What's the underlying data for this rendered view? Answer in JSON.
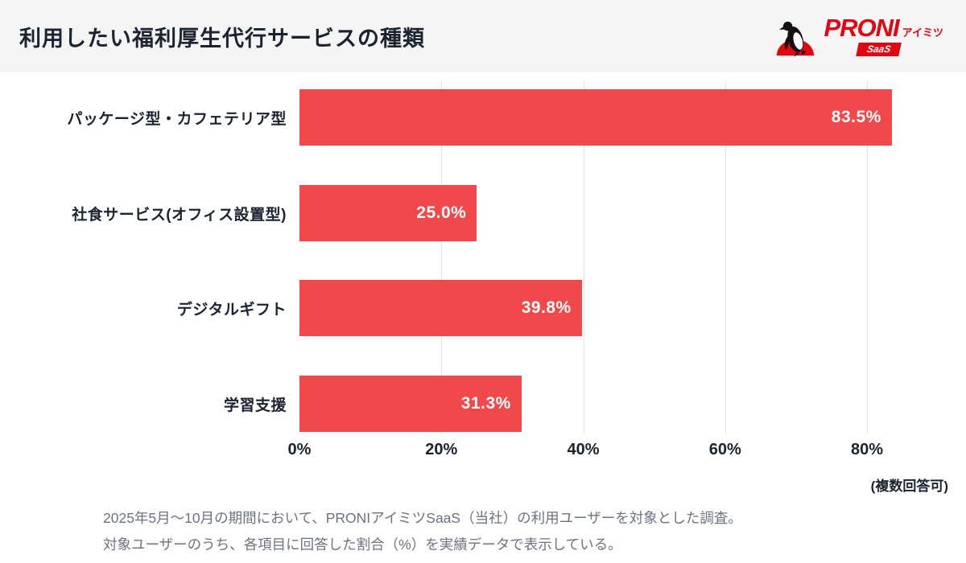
{
  "header": {
    "title": "利用したい福利厚生代行サービスの種類",
    "logo": {
      "brand": "PRONI",
      "sub": "アイミツ",
      "badge": "SaaS"
    }
  },
  "chart_data": {
    "type": "bar",
    "orientation": "horizontal",
    "title": "利用したい福利厚生代行サービスの種類",
    "categories": [
      "パッケージ型・カフェテリア型",
      "社食サービス(オフィス設置型)",
      "デジタルギフト",
      "学習支援"
    ],
    "values": [
      83.5,
      25.0,
      39.8,
      31.3
    ],
    "value_label_format": "percent_one_decimal",
    "x_ticks": [
      "0%",
      "20%",
      "40%",
      "60%",
      "80%"
    ],
    "x_tick_values": [
      0,
      20,
      40,
      60,
      80
    ],
    "xlim": [
      0,
      87
    ],
    "bar_color": "#F0484B",
    "grid": true,
    "legend": "none",
    "note": "(複数回答可)"
  },
  "footer": {
    "line1": "2025年5月〜10月の期間において、PRONIアイミツSaaS（当社）の利用ユーザーを対象とした調査。",
    "line2": "対象ユーザーのうち、各項目に回答した割合（%）を実績データで表示している。"
  },
  "colors": {
    "bar": "#F0484B",
    "logo_red": "#e20613",
    "header_bg": "#f5f5f6",
    "text_dark": "#1b2330",
    "text_gray": "#6b7280",
    "gridline": "#e3e3e4"
  }
}
